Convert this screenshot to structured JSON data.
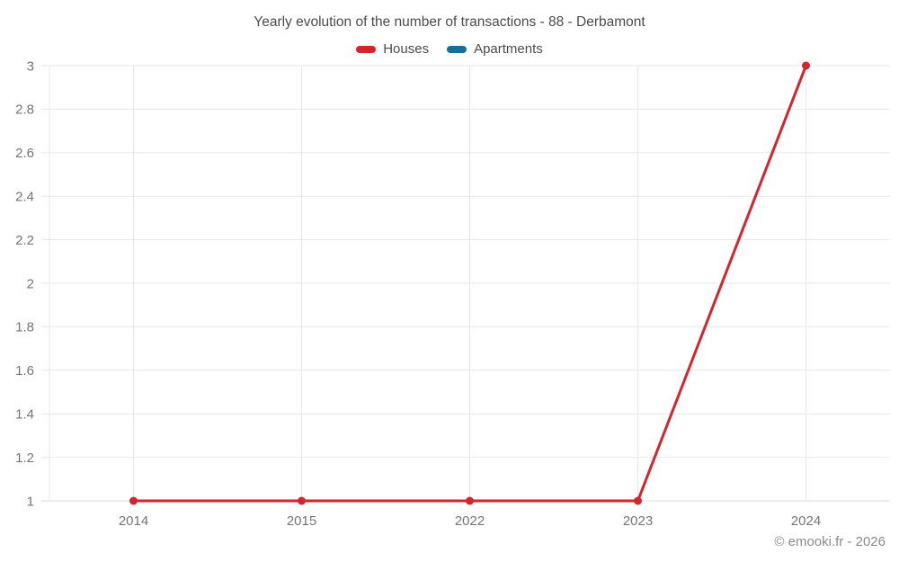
{
  "chart_data": {
    "type": "line",
    "title": "Yearly evolution of the number of transactions - 88 - Derbamont",
    "categories": [
      "2014",
      "2015",
      "2022",
      "2023",
      "2024"
    ],
    "series": [
      {
        "name": "Houses",
        "color": "#d4252c",
        "values": [
          1,
          1,
          1,
          1,
          3
        ]
      },
      {
        "name": "Apartments",
        "color": "#16719f",
        "values": []
      }
    ],
    "ylim": [
      1,
      3
    ],
    "y_ticks": [
      "3",
      "2.8",
      "2.6",
      "2.4",
      "2.2",
      "2",
      "1.8",
      "1.6",
      "1.4",
      "1.2",
      "1"
    ],
    "grid": true,
    "legend_position": "top",
    "xlabel": "",
    "ylabel": "",
    "colors": {
      "gridline": "#e7e7e7",
      "axis_line": "#d9d9d9",
      "title_text": "#4c4c4c",
      "tick_text": "#757575",
      "watermark_text": "#8c8c8c"
    },
    "watermark": "© emooki.fr - 2026"
  }
}
